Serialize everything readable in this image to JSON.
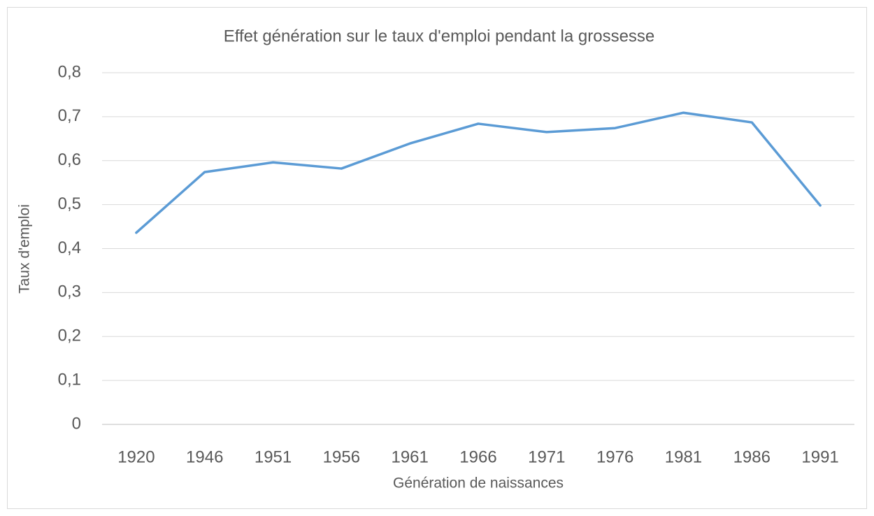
{
  "chart_data": {
    "type": "line",
    "title": "Effet génération sur le taux d'emploi pendant la grossesse",
    "x_label": "Génération de naissances",
    "y_label": "Taux d'emploi",
    "categories": [
      "1920",
      "1946",
      "1951",
      "1956",
      "1961",
      "1966",
      "1971",
      "1976",
      "1981",
      "1986",
      "1991"
    ],
    "values": [
      0.436,
      0.574,
      0.596,
      0.582,
      0.639,
      0.684,
      0.665,
      0.674,
      0.709,
      0.687,
      0.498
    ],
    "color": "#5b9bd5",
    "ylim": [
      0,
      0.8
    ],
    "yticks": [
      0,
      {
        "value": 0.1,
        "label": "0,1"
      },
      {
        "value": 0.2,
        "label": "0,2"
      },
      {
        "value": 0.3,
        "label": "0,3"
      },
      {
        "value": 0.4,
        "label": "0,4"
      },
      {
        "value": 0.5,
        "label": "0,5"
      },
      {
        "value": 0.6,
        "label": "0,6"
      },
      {
        "value": 0.7,
        "label": "0,7"
      },
      {
        "value": 0.8,
        "label": "0,8"
      }
    ],
    "grid": true
  }
}
